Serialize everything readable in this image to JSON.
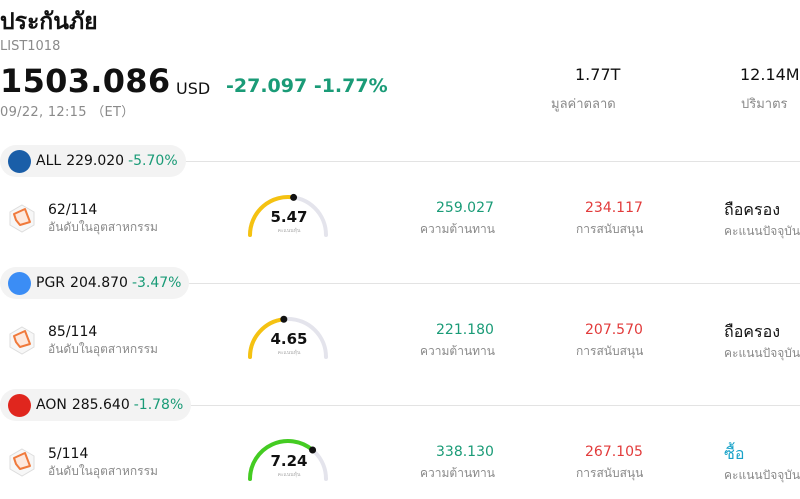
{
  "header": {
    "title": "ประกันภัย",
    "code": "LIST1018",
    "price": "1503.086",
    "currency": "USD",
    "change": "-27.097 -1.77%",
    "time": "09/22, 12:15 （ET）",
    "market_cap_value": "1.77T",
    "market_cap_label": "มูลค่าตลาด",
    "volume_value": "12.14M",
    "volume_label": "ปริมาตร"
  },
  "labels": {
    "rank_label": "อันดับในอุตสาหกรรม",
    "score_label": "คะแนนหุ้น",
    "resistance_label": "ความต้านทาน",
    "support_label": "การสนับสนุน",
    "rating_label": "คะแนนปัจจุบัน"
  },
  "stocks": [
    {
      "ticker": "ALL",
      "price": "229.020",
      "change": "-5.70%",
      "logo_color": "#1a5ea8",
      "logo_icon": "allstate-logo",
      "rank": "62/114",
      "score": "5.47",
      "score_level": 0.547,
      "gauge_color": "#f5c211",
      "resistance": "259.027",
      "support": "234.117",
      "rating": "ถือครอง"
    },
    {
      "ticker": "PGR",
      "price": "204.870",
      "change": "-3.47%",
      "logo_color": "#3b8df5",
      "logo_icon": "progressive-logo",
      "rank": "85/114",
      "score": "4.65",
      "score_level": 0.465,
      "gauge_color": "#f5c211",
      "resistance": "221.180",
      "support": "207.570",
      "rating": "ถือครอง"
    },
    {
      "ticker": "AON",
      "price": "285.640",
      "change": "-1.78%",
      "logo_color": "#e0261e",
      "logo_icon": "aon-logo",
      "rank": "5/114",
      "score": "7.24",
      "score_level": 0.724,
      "gauge_color": "#44cc22",
      "resistance": "338.130",
      "support": "267.105",
      "rating": "ซื้อ"
    }
  ],
  "colors": {
    "positive_change": "#1a9b77",
    "support": "#e23b3b",
    "buy": "#1aa3c9",
    "gauge_track": "#e4e4ec"
  }
}
